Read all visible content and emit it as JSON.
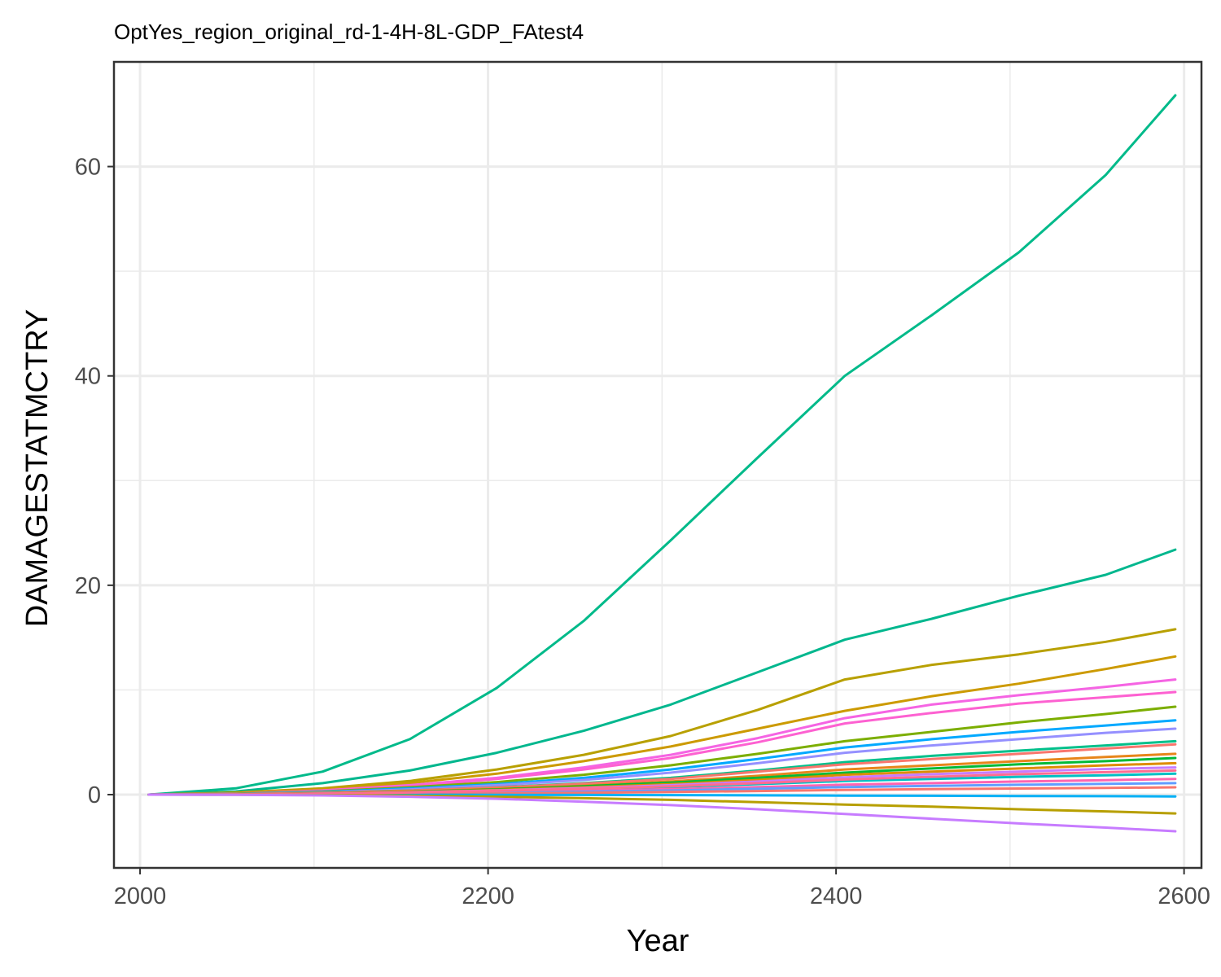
{
  "chart_data": {
    "type": "line",
    "title": "OptYes_region_original_rd-1-4H-8L-GDP_FAtest4",
    "xlabel": "Year",
    "ylabel": "DAMAGESTATMCTRY",
    "xlim": [
      1985,
      2610
    ],
    "ylim": [
      -7,
      70
    ],
    "x_ticks": [
      2000,
      2200,
      2400,
      2600
    ],
    "y_ticks": [
      0,
      20,
      40,
      60
    ],
    "x_tick_labels": [
      "2000",
      "2200",
      "2400",
      "2600"
    ],
    "y_tick_labels": [
      "0",
      "20",
      "40",
      "60"
    ],
    "grid": true,
    "legend": "none",
    "x": [
      2005,
      2055,
      2105,
      2155,
      2205,
      2255,
      2305,
      2355,
      2405,
      2455,
      2505,
      2555,
      2595
    ],
    "series": [
      {
        "color": "#00BA8A",
        "values": [
          0,
          0.6,
          2.2,
          5.3,
          10.2,
          16.6,
          24.3,
          32.2,
          40.0,
          45.8,
          51.8,
          59.2,
          66.8
        ]
      },
      {
        "color": "#00B78E",
        "values": [
          0,
          0.3,
          1.1,
          2.3,
          4.0,
          6.1,
          8.6,
          11.7,
          14.8,
          16.8,
          19.0,
          21.0,
          23.4
        ]
      },
      {
        "color": "#B8A000",
        "values": [
          0,
          0.2,
          0.6,
          1.3,
          2.4,
          3.8,
          5.6,
          8.1,
          11.0,
          12.4,
          13.4,
          14.6,
          15.8
        ]
      },
      {
        "color": "#CC9A00",
        "values": [
          0,
          0.15,
          0.5,
          1.1,
          2.0,
          3.2,
          4.6,
          6.3,
          8.0,
          9.4,
          10.6,
          12.0,
          13.2
        ]
      },
      {
        "color": "#F564E3",
        "values": [
          0,
          0.1,
          0.4,
          0.9,
          1.6,
          2.6,
          3.8,
          5.4,
          7.3,
          8.6,
          9.5,
          10.3,
          11.0
        ]
      },
      {
        "color": "#FD61D1",
        "values": [
          0,
          0.1,
          0.4,
          0.8,
          1.5,
          2.4,
          3.5,
          5.0,
          6.8,
          7.8,
          8.7,
          9.3,
          9.8
        ]
      },
      {
        "color": "#7CAE00",
        "values": [
          0,
          0.1,
          0.3,
          0.7,
          1.2,
          1.9,
          2.8,
          3.9,
          5.1,
          6.0,
          6.9,
          7.7,
          8.4
        ]
      },
      {
        "color": "#00A9FF",
        "values": [
          0,
          0.08,
          0.25,
          0.6,
          1.0,
          1.6,
          2.4,
          3.4,
          4.5,
          5.3,
          6.0,
          6.6,
          7.1
        ]
      },
      {
        "color": "#9590FF",
        "values": [
          0,
          0.07,
          0.2,
          0.5,
          0.9,
          1.4,
          2.1,
          3.0,
          4.0,
          4.7,
          5.3,
          5.9,
          6.3
        ]
      },
      {
        "color": "#00C08B",
        "values": [
          0,
          0.06,
          0.18,
          0.4,
          0.7,
          1.1,
          1.6,
          2.3,
          3.1,
          3.7,
          4.2,
          4.7,
          5.1
        ]
      },
      {
        "color": "#F8766D",
        "values": [
          0,
          0.06,
          0.17,
          0.38,
          0.68,
          1.05,
          1.5,
          2.2,
          2.9,
          3.4,
          3.9,
          4.4,
          4.8
        ]
      },
      {
        "color": "#E7861B",
        "values": [
          0,
          0.05,
          0.14,
          0.3,
          0.55,
          0.85,
          1.25,
          1.8,
          2.4,
          2.8,
          3.2,
          3.6,
          3.9
        ]
      },
      {
        "color": "#00BA38",
        "values": [
          0,
          0.04,
          0.12,
          0.27,
          0.5,
          0.8,
          1.15,
          1.6,
          2.1,
          2.5,
          2.9,
          3.2,
          3.5
        ]
      },
      {
        "color": "#DE8C00",
        "values": [
          0,
          0.04,
          0.11,
          0.25,
          0.45,
          0.7,
          1.0,
          1.4,
          1.9,
          2.2,
          2.5,
          2.8,
          3.0
        ]
      },
      {
        "color": "#C77CFF",
        "values": [
          0,
          0.03,
          0.1,
          0.22,
          0.4,
          0.62,
          0.9,
          1.25,
          1.65,
          1.95,
          2.2,
          2.45,
          2.6
        ]
      },
      {
        "color": "#00BFC4",
        "values": [
          0,
          0.03,
          0.08,
          0.18,
          0.32,
          0.5,
          0.73,
          1.0,
          1.3,
          1.5,
          1.7,
          1.85,
          2.0
        ]
      },
      {
        "color": "#FF64B0",
        "values": [
          0,
          0.02,
          0.06,
          0.13,
          0.23,
          0.36,
          0.52,
          0.72,
          0.95,
          1.1,
          1.25,
          1.38,
          1.5
        ]
      },
      {
        "color": "#619CFF",
        "values": [
          0,
          0.02,
          0.05,
          0.1,
          0.18,
          0.28,
          0.4,
          0.55,
          0.72,
          0.83,
          0.94,
          1.03,
          1.1
        ]
      },
      {
        "color": "#F8766D",
        "values": [
          0,
          0.01,
          0.03,
          0.06,
          0.11,
          0.17,
          0.25,
          0.34,
          0.45,
          0.52,
          0.58,
          0.64,
          0.7
        ]
      },
      {
        "color": "#00B0F6",
        "values": [
          0,
          0.0,
          0.0,
          -0.01,
          -0.02,
          -0.03,
          -0.05,
          -0.07,
          -0.09,
          -0.11,
          -0.13,
          -0.15,
          -0.17
        ]
      },
      {
        "color": "#FF6C91",
        "values": [
          0,
          0.03,
          0.09,
          0.2,
          0.36,
          0.56,
          0.8,
          1.1,
          1.45,
          1.7,
          1.95,
          2.15,
          2.3
        ]
      },
      {
        "color": "#B79F00",
        "values": [
          0,
          -0.01,
          -0.04,
          -0.1,
          -0.2,
          -0.34,
          -0.5,
          -0.72,
          -0.95,
          -1.15,
          -1.4,
          -1.6,
          -1.8
        ]
      },
      {
        "color": "#C77CFF",
        "values": [
          0,
          -0.02,
          -0.08,
          -0.2,
          -0.4,
          -0.68,
          -1.0,
          -1.4,
          -1.85,
          -2.3,
          -2.75,
          -3.15,
          -3.5
        ]
      }
    ]
  }
}
